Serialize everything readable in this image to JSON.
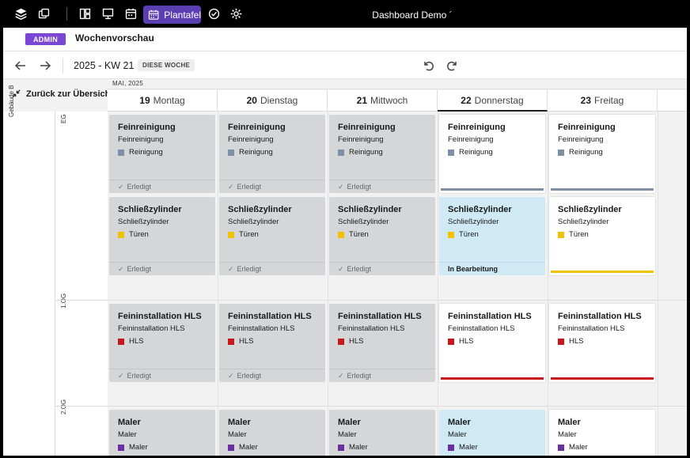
{
  "topbar": {
    "active_label": "Plantafel",
    "window_title": "Dashboard Demo ´"
  },
  "header": {
    "badge": "ADMIN",
    "title": "Wochenvorschau"
  },
  "nav": {
    "week_label": "2025 - KW 21",
    "this_week": "DIESE WOCHE"
  },
  "calendar": {
    "back_label": "Zurück zur Übersicht",
    "month": "MAI, 2025",
    "days": [
      {
        "num": "19",
        "name": "Montag"
      },
      {
        "num": "20",
        "name": "Dienstag"
      },
      {
        "num": "21",
        "name": "Mittwoch"
      },
      {
        "num": "22",
        "name": "Donnerstag"
      },
      {
        "num": "23",
        "name": "Freitag"
      }
    ],
    "building": "Gebäude B",
    "floors": [
      "EG",
      "1.OG",
      "2.OG"
    ]
  },
  "tasks": {
    "done_label": "Erledigt",
    "progress_label": "In Bearbeitung",
    "rows": [
      [
        {
          "title": "Feinreinigung",
          "sub": "Feinreinigung",
          "cat": "Reinigung"
        },
        {
          "title": "Feinreinigung",
          "sub": "Feinreinigung",
          "cat": "Reinigung"
        },
        {
          "title": "Feinreinigung",
          "sub": "Feinreinigung",
          "cat": "Reinigung"
        },
        {
          "title": "Feinreinigung",
          "sub": "Feinreinigung",
          "cat": "Reinigung"
        },
        {
          "title": "Feinreinigung",
          "sub": "Feinreinigung",
          "cat": "Reinigung"
        }
      ],
      [
        {
          "title": "Schließzylinder",
          "sub": "Schließzylinder",
          "cat": "Türen"
        },
        {
          "title": "Schließzylinder",
          "sub": "Schließzylinder",
          "cat": "Türen"
        },
        {
          "title": "Schließzylinder",
          "sub": "Schließzylinder",
          "cat": "Türen"
        },
        {
          "title": "Schließzylinder",
          "sub": "Schließzylinder",
          "cat": "Türen"
        },
        {
          "title": "Schließzylinder",
          "sub": "Schließzylinder",
          "cat": "Türen"
        }
      ],
      [
        {
          "title": "Feininstallation HLS",
          "sub": "Feininstallation HLS",
          "cat": "HLS"
        },
        {
          "title": "Feininstallation HLS",
          "sub": "Feininstallation HLS",
          "cat": "HLS"
        },
        {
          "title": "Feininstallation HLS",
          "sub": "Feininstallation HLS",
          "cat": "HLS"
        },
        {
          "title": "Feininstallation HLS",
          "sub": "Feininstallation HLS",
          "cat": "HLS"
        },
        {
          "title": "Feininstallation HLS",
          "sub": "Feininstallation HLS",
          "cat": "HLS"
        }
      ],
      [
        {
          "title": "Maler",
          "sub": "Maler",
          "cat": "Maler"
        },
        {
          "title": "Maler",
          "sub": "Maler",
          "cat": "Maler"
        },
        {
          "title": "Maler",
          "sub": "Maler",
          "cat": "Maler"
        },
        {
          "title": "Maler",
          "sub": "Maler",
          "cat": "Maler"
        },
        {
          "title": "Maler",
          "sub": "Maler",
          "cat": "Maler"
        }
      ]
    ]
  },
  "colors": {
    "Reinigung": "#7f8fa6",
    "Tueren": "#f2c200",
    "HLS": "#c8161d",
    "Maler": "#6a2fa0",
    "accent": "#5b3fb2"
  }
}
